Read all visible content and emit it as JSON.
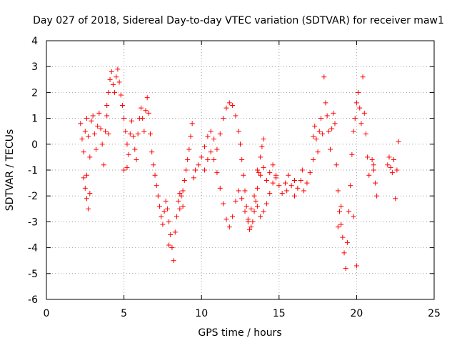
{
  "chart_data": {
    "type": "scatter",
    "title": "Day 027 of 2018, Sidereal Day-to-day VTEC variation (SDTVAR) for receiver maw1",
    "xlabel": "GPS time / hours",
    "ylabel": "SDTVAR / TECUs",
    "xlim": [
      0,
      25
    ],
    "ylim": [
      -6,
      4
    ],
    "xticks": [
      0,
      5,
      10,
      15,
      20,
      25
    ],
    "yticks": [
      -6,
      -5,
      -4,
      -3,
      -2,
      -1,
      0,
      1,
      2,
      3,
      4
    ],
    "grid": true,
    "marker": "plus",
    "color": "#ff0000",
    "series": [
      {
        "name": "SDTVAR",
        "points": [
          [
            2.2,
            0.8
          ],
          [
            2.3,
            0.2
          ],
          [
            2.4,
            -0.3
          ],
          [
            2.5,
            0.5
          ],
          [
            2.6,
            1.0
          ],
          [
            2.7,
            0.3
          ],
          [
            2.8,
            -0.5
          ],
          [
            2.9,
            0.9
          ],
          [
            3.0,
            1.1
          ],
          [
            3.1,
            0.4
          ],
          [
            3.2,
            -0.2
          ],
          [
            3.3,
            0.7
          ],
          [
            3.4,
            1.2
          ],
          [
            3.5,
            0.6
          ],
          [
            3.6,
            0.0
          ],
          [
            3.7,
            -0.8
          ],
          [
            3.8,
            0.5
          ],
          [
            3.9,
            1.1
          ],
          [
            4.0,
            0.4
          ],
          [
            2.4,
            -1.3
          ],
          [
            2.5,
            -1.7
          ],
          [
            2.6,
            -2.1
          ],
          [
            2.7,
            -2.5
          ],
          [
            2.8,
            -1.9
          ],
          [
            2.6,
            -1.2
          ],
          [
            3.9,
            1.5
          ],
          [
            4.0,
            2.0
          ],
          [
            4.1,
            2.5
          ],
          [
            4.2,
            2.8
          ],
          [
            4.3,
            2.3
          ],
          [
            4.4,
            2.0
          ],
          [
            4.5,
            2.6
          ],
          [
            4.6,
            2.9
          ],
          [
            4.7,
            2.4
          ],
          [
            4.8,
            1.9
          ],
          [
            4.9,
            1.5
          ],
          [
            5.0,
            1.0
          ],
          [
            5.1,
            0.5
          ],
          [
            5.2,
            0.0
          ],
          [
            5.3,
            -0.4
          ],
          [
            5.2,
            -0.9
          ],
          [
            5.0,
            -1.0
          ],
          [
            5.4,
            0.4
          ],
          [
            5.5,
            0.9
          ],
          [
            5.6,
            0.3
          ],
          [
            5.7,
            -0.2
          ],
          [
            5.8,
            -0.6
          ],
          [
            5.9,
            0.4
          ],
          [
            6.0,
            1.0
          ],
          [
            6.1,
            1.4
          ],
          [
            6.2,
            1.0
          ],
          [
            6.3,
            0.5
          ],
          [
            6.4,
            1.3
          ],
          [
            6.5,
            1.8
          ],
          [
            6.6,
            1.2
          ],
          [
            6.7,
            0.4
          ],
          [
            6.8,
            -0.3
          ],
          [
            6.9,
            -0.8
          ],
          [
            7.0,
            -1.2
          ],
          [
            7.1,
            -1.6
          ],
          [
            7.2,
            -2.0
          ],
          [
            7.3,
            -2.4
          ],
          [
            7.4,
            -2.8
          ],
          [
            7.5,
            -3.1
          ],
          [
            7.6,
            -2.6
          ],
          [
            7.7,
            -2.2
          ],
          [
            7.8,
            -2.5
          ],
          [
            7.9,
            -3.0
          ],
          [
            8.0,
            -3.5
          ],
          [
            8.1,
            -4.0
          ],
          [
            8.2,
            -4.5
          ],
          [
            7.9,
            -3.9
          ],
          [
            8.3,
            -3.4
          ],
          [
            8.4,
            -2.8
          ],
          [
            8.5,
            -2.2
          ],
          [
            8.6,
            -2.5
          ],
          [
            8.7,
            -2.0
          ],
          [
            8.8,
            -1.8
          ],
          [
            8.9,
            -1.4
          ],
          [
            9.0,
            -1.0
          ],
          [
            9.1,
            -0.6
          ],
          [
            9.2,
            -0.2
          ],
          [
            9.3,
            0.3
          ],
          [
            9.4,
            0.8
          ],
          [
            8.8,
            -2.4
          ],
          [
            8.6,
            -1.9
          ],
          [
            9.5,
            -1.3
          ],
          [
            9.6,
            -1.0
          ],
          [
            9.8,
            -0.8
          ],
          [
            10.0,
            -0.5
          ],
          [
            10.2,
            -0.1
          ],
          [
            10.4,
            0.3
          ],
          [
            10.6,
            0.5
          ],
          [
            10.8,
            0.2
          ],
          [
            11.0,
            -0.2
          ],
          [
            11.2,
            0.4
          ],
          [
            11.4,
            1.0
          ],
          [
            11.6,
            1.4
          ],
          [
            11.8,
            1.6
          ],
          [
            12.0,
            1.5
          ],
          [
            12.2,
            1.1
          ],
          [
            12.4,
            0.5
          ],
          [
            12.5,
            0.0
          ],
          [
            12.6,
            -0.6
          ],
          [
            12.7,
            -1.2
          ],
          [
            12.8,
            -1.8
          ],
          [
            12.9,
            -2.4
          ],
          [
            13.0,
            -2.9
          ],
          [
            13.1,
            -3.3
          ],
          [
            13.2,
            -3.2
          ],
          [
            13.3,
            -3.0
          ],
          [
            13.4,
            -2.6
          ],
          [
            13.5,
            -2.2
          ],
          [
            13.6,
            -1.7
          ],
          [
            13.7,
            -1.1
          ],
          [
            13.8,
            -0.5
          ],
          [
            13.9,
            -0.1
          ],
          [
            14.0,
            0.2
          ],
          [
            10.2,
            -1.0
          ],
          [
            10.4,
            -0.6
          ],
          [
            10.6,
            -0.3
          ],
          [
            10.8,
            -0.6
          ],
          [
            11.0,
            -1.1
          ],
          [
            11.2,
            -1.7
          ],
          [
            11.4,
            -2.3
          ],
          [
            11.6,
            -2.9
          ],
          [
            11.8,
            -3.2
          ],
          [
            12.0,
            -2.8
          ],
          [
            12.2,
            -2.2
          ],
          [
            12.4,
            -1.8
          ],
          [
            12.6,
            -2.1
          ],
          [
            12.8,
            -2.6
          ],
          [
            13.0,
            -3.0
          ],
          [
            13.2,
            -2.5
          ],
          [
            13.4,
            -2.0
          ],
          [
            13.6,
            -2.4
          ],
          [
            13.8,
            -2.8
          ],
          [
            14.0,
            -2.6
          ],
          [
            14.2,
            -2.3
          ],
          [
            14.4,
            -1.9
          ],
          [
            14.6,
            -1.5
          ],
          [
            14.8,
            -1.2
          ],
          [
            13.6,
            -1.0
          ],
          [
            13.8,
            -1.2
          ],
          [
            14.0,
            -0.9
          ],
          [
            14.2,
            -1.4
          ],
          [
            14.4,
            -1.1
          ],
          [
            14.6,
            -0.8
          ],
          [
            14.8,
            -1.3
          ],
          [
            15.0,
            -1.6
          ],
          [
            15.2,
            -1.9
          ],
          [
            15.4,
            -1.5
          ],
          [
            15.6,
            -1.2
          ],
          [
            15.8,
            -1.6
          ],
          [
            16.0,
            -2.0
          ],
          [
            16.2,
            -1.7
          ],
          [
            16.4,
            -1.4
          ],
          [
            16.6,
            -1.8
          ],
          [
            16.8,
            -1.5
          ],
          [
            17.0,
            -1.1
          ],
          [
            17.2,
            -0.6
          ],
          [
            16.5,
            -1.0
          ],
          [
            16.0,
            -1.4
          ],
          [
            15.5,
            -1.8
          ],
          [
            17.2,
            0.3
          ],
          [
            17.3,
            0.7
          ],
          [
            17.4,
            0.2
          ],
          [
            17.5,
            -0.3
          ],
          [
            17.6,
            0.5
          ],
          [
            17.7,
            1.0
          ],
          [
            17.8,
            0.4
          ],
          [
            17.9,
            2.6
          ],
          [
            18.0,
            1.6
          ],
          [
            18.1,
            1.1
          ],
          [
            18.2,
            0.5
          ],
          [
            18.3,
            -0.2
          ],
          [
            18.4,
            0.6
          ],
          [
            18.5,
            1.2
          ],
          [
            18.6,
            0.8
          ],
          [
            18.7,
            -0.8
          ],
          [
            18.8,
            -1.8
          ],
          [
            18.9,
            -2.6
          ],
          [
            19.0,
            -3.1
          ],
          [
            19.1,
            -3.6
          ],
          [
            19.2,
            -4.2
          ],
          [
            19.3,
            -4.8
          ],
          [
            19.4,
            -3.8
          ],
          [
            19.5,
            -2.6
          ],
          [
            19.6,
            -1.6
          ],
          [
            19.7,
            -0.4
          ],
          [
            19.8,
            0.5
          ],
          [
            19.9,
            1.0
          ],
          [
            20.0,
            1.6
          ],
          [
            20.1,
            2.0
          ],
          [
            20.2,
            1.4
          ],
          [
            20.3,
            0.8
          ],
          [
            20.4,
            2.6
          ],
          [
            20.5,
            1.2
          ],
          [
            20.6,
            0.4
          ],
          [
            20.7,
            -0.5
          ],
          [
            20.8,
            -1.2
          ],
          [
            19.8,
            -2.8
          ],
          [
            20.0,
            -4.7
          ],
          [
            19.0,
            -2.4
          ],
          [
            18.8,
            -3.2
          ],
          [
            21.0,
            -0.6
          ],
          [
            21.1,
            -1.0
          ],
          [
            21.2,
            -1.5
          ],
          [
            21.3,
            -2.0
          ],
          [
            21.1,
            -0.8
          ],
          [
            22.0,
            -0.8
          ],
          [
            22.1,
            -0.5
          ],
          [
            22.2,
            -0.9
          ],
          [
            22.3,
            -1.1
          ],
          [
            22.4,
            -0.6
          ],
          [
            22.5,
            -2.1
          ],
          [
            22.6,
            -1.0
          ],
          [
            22.7,
            0.1
          ]
        ]
      }
    ]
  }
}
